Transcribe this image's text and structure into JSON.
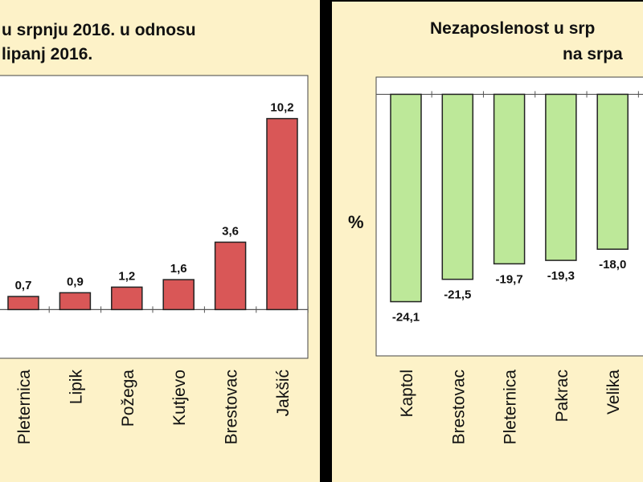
{
  "colors": {
    "background": "#fdf2c8",
    "plot_area": "#ffffff",
    "bar_left": "#d95757",
    "bar_right": "#bde899",
    "bar_stroke": "#222222"
  },
  "chart_data": [
    {
      "type": "bar",
      "title_lines": [
        "u srpnju 2016. u odnosu",
        "lipanj 2016."
      ],
      "categories": [
        "Pleternica",
        "Lipik",
        "Požega",
        "Kutjevo",
        "Brestovac",
        "Jakšić"
      ],
      "values": [
        0.7,
        0.9,
        1.2,
        1.6,
        3.6,
        10.2
      ],
      "value_labels": [
        "0,7",
        "0,9",
        "1,2",
        "1,6",
        "3,6",
        "10,2"
      ],
      "ylabel": "",
      "ylim": [
        -2.6,
        12.5
      ],
      "grid": false,
      "legend": "none"
    },
    {
      "type": "bar",
      "title_lines": [
        "Nezaposlenost u srp",
        "na srpa"
      ],
      "categories": [
        "Kaptol",
        "Brestovac",
        "Pleternica",
        "Pakrac",
        "Velika"
      ],
      "values": [
        -24.1,
        -21.5,
        -19.7,
        -19.3,
        -18.0
      ],
      "value_labels": [
        "-24,1",
        "-21,5",
        "-19,7",
        "-19,3",
        "-18,0"
      ],
      "ylabel": "%",
      "ylim": [
        -30.4,
        2.0
      ],
      "grid": false,
      "legend": "none"
    }
  ]
}
